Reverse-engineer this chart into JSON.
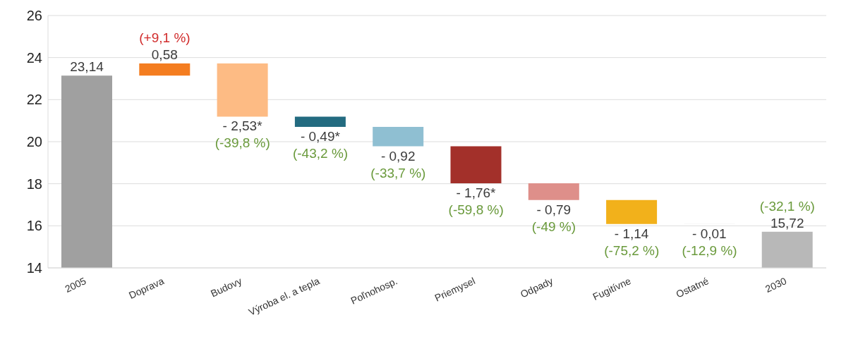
{
  "chart_data": {
    "type": "bar",
    "categories": [
      "2005",
      "Doprava",
      "Budovy",
      "Výroba el. a tepla",
      "Poľnohosp.",
      "Priemysel",
      "Odpady",
      "Fugitívne",
      "Ostatné",
      "2030"
    ],
    "values": [
      23.14,
      0.58,
      -2.53,
      -0.49,
      -0.92,
      -1.76,
      -0.79,
      -1.14,
      -0.01,
      15.72
    ],
    "base": [
      null,
      23.14,
      23.72,
      21.19,
      20.7,
      19.78,
      18.02,
      17.23,
      16.09,
      null
    ],
    "colors": [
      "#a0a0a0",
      "#f47d20",
      "#fdbb84",
      "#236b80",
      "#8fbfd2",
      "#a3302a",
      "#de8f8a",
      "#f2b11b",
      "#e0e0e0",
      "#b8b8b8"
    ],
    "value_labels": [
      "23,14",
      "0,58",
      "- 2,53*",
      "- 0,49*",
      "- 0,92",
      "- 1,76*",
      "- 0,79",
      "- 1,14",
      "- 0,01",
      "15,72"
    ],
    "annotations": [
      {
        "text": "(+9,1 %)",
        "x": "Doprava",
        "y": 23.72
      },
      {
        "text": "(-39,8 %)",
        "x": "Budovy",
        "y": 21.19
      },
      {
        "text": "(-43,2 %)",
        "x": "Výroba el. a tepla",
        "y": 20.7
      },
      {
        "text": "(-33,7 %)",
        "x": "Poľnohosp.",
        "y": 19.78
      },
      {
        "text": "(-59,8 %)",
        "x": "Priemysel",
        "y": 18.02
      },
      {
        "text": "(-49 %)",
        "x": "Odpady",
        "y": 17.23
      },
      {
        "text": "(-75,2 %)",
        "x": "Fugitívne",
        "y": 16.09
      },
      {
        "text": "(-12,9 %)",
        "x": "Ostatné",
        "y": 16.08
      },
      {
        "text": "(-32,1 %)",
        "x": "2030",
        "y": 15.72
      }
    ],
    "ylim": [
      14,
      26
    ],
    "yticks": [
      14,
      16,
      18,
      20,
      22,
      24,
      26
    ],
    "grid": "y"
  }
}
